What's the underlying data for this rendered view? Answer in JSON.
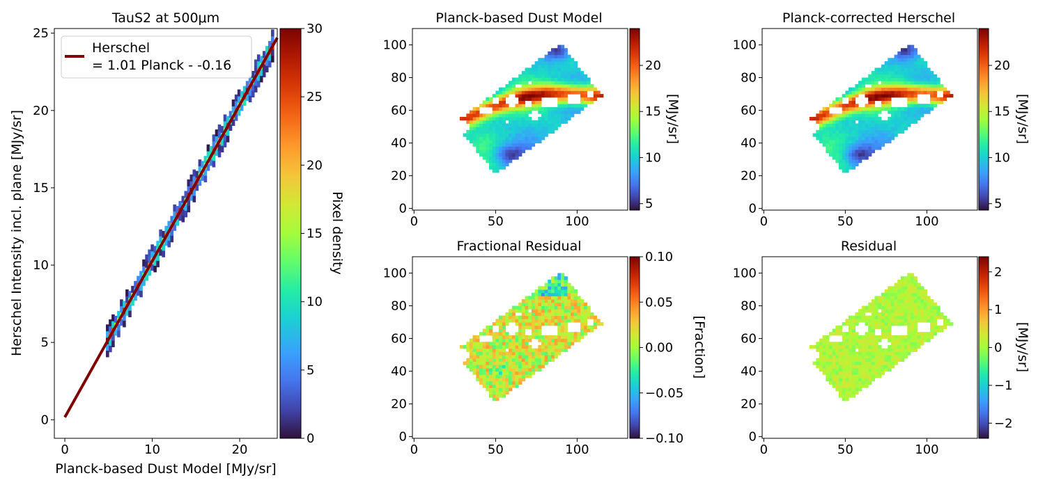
{
  "colormap": "turbo",
  "colors": {
    "fit_line": "#800000",
    "axis": "#000000",
    "background": "#ffffff"
  },
  "chart_data": [
    {
      "id": "scatter",
      "type": "heatmap",
      "title": "TauS2 at 500μm",
      "xlabel": "Planck-based Dust Model [MJy/sr]",
      "ylabel": "Herschel Intensity incl. plane [MJy/sr]",
      "xlim": [
        -1.2,
        24.3
      ],
      "ylim": [
        -1.2,
        25.3
      ],
      "xticks": [
        "0",
        "10",
        "20"
      ],
      "xtick_values": [
        0,
        10,
        20
      ],
      "yticks": [
        "0",
        "5",
        "10",
        "15",
        "20",
        "25"
      ],
      "ytick_values": [
        0,
        5,
        10,
        15,
        20,
        25
      ],
      "legend": {
        "line1": "Herschel",
        "line2": "= 1.01 Planck - -0.16",
        "placement": "upper-left"
      },
      "fit": {
        "slope": 1.01,
        "intercept": 0.16,
        "x_range": [
          0,
          24.3
        ]
      },
      "density_range": [
        4.7,
        23.8
      ],
      "colorbar": {
        "label": "Pixel density",
        "range": [
          0,
          30
        ],
        "ticks": [
          "0",
          "5",
          "10",
          "15",
          "20",
          "25",
          "30"
        ],
        "tick_values": [
          0,
          5,
          10,
          15,
          20,
          25,
          30
        ]
      }
    },
    {
      "id": "model",
      "type": "heatmap",
      "title": "Planck-based Dust Model",
      "map_kind": "model",
      "xlim": [
        -1,
        131
      ],
      "ylim": [
        -1,
        110
      ],
      "xticks": [
        "0",
        "50",
        "100"
      ],
      "xtick_values": [
        0,
        50,
        100
      ],
      "yticks": [
        "0",
        "20",
        "40",
        "60",
        "80",
        "100"
      ],
      "ytick_values": [
        0,
        20,
        40,
        60,
        80,
        100
      ],
      "colorbar": {
        "label": "[MJy/sr]",
        "range": [
          4.3,
          24
        ],
        "ticks": [
          "5",
          "10",
          "15",
          "20"
        ],
        "tick_values": [
          5,
          10,
          15,
          20
        ]
      }
    },
    {
      "id": "corrected",
      "type": "heatmap",
      "title": "Planck-corrected Herschel",
      "map_kind": "model",
      "xlim": [
        -1,
        131
      ],
      "ylim": [
        -1,
        110
      ],
      "xticks": [
        "0",
        "50",
        "100"
      ],
      "xtick_values": [
        0,
        50,
        100
      ],
      "yticks": [
        "0",
        "20",
        "40",
        "60",
        "80",
        "100"
      ],
      "ytick_values": [
        0,
        20,
        40,
        60,
        80,
        100
      ],
      "colorbar": {
        "label": "[MJy/sr]",
        "range": [
          4.3,
          24
        ],
        "ticks": [
          "5",
          "10",
          "15",
          "20"
        ],
        "tick_values": [
          5,
          10,
          15,
          20
        ]
      }
    },
    {
      "id": "fracres",
      "type": "heatmap",
      "title": "Fractional Residual",
      "map_kind": "fractional",
      "xlim": [
        -1,
        131
      ],
      "ylim": [
        -1,
        110
      ],
      "xticks": [
        "0",
        "50",
        "100"
      ],
      "xtick_values": [
        0,
        50,
        100
      ],
      "yticks": [
        "0",
        "20",
        "40",
        "60",
        "80",
        "100"
      ],
      "ytick_values": [
        0,
        20,
        40,
        60,
        80,
        100
      ],
      "colorbar": {
        "label": "[Fraction]",
        "range": [
          -0.1,
          0.1
        ],
        "ticks": [
          "−0.10",
          "−0.05",
          "0.00",
          "0.05",
          "0.10"
        ],
        "tick_values": [
          -0.1,
          -0.05,
          0,
          0.05,
          0.1
        ]
      }
    },
    {
      "id": "res",
      "type": "heatmap",
      "title": "Residual",
      "map_kind": "residual",
      "xlim": [
        -1,
        131
      ],
      "ylim": [
        -1,
        110
      ],
      "xticks": [
        "0",
        "50",
        "100"
      ],
      "xtick_values": [
        0,
        50,
        100
      ],
      "yticks": [
        "0",
        "20",
        "40",
        "60",
        "80",
        "100"
      ],
      "ytick_values": [
        0,
        20,
        40,
        60,
        80,
        100
      ],
      "colorbar": {
        "label": "[MJy/sr]",
        "range": [
          -2.4,
          2.4
        ],
        "ticks": [
          "−2",
          "−1",
          "0",
          "1",
          "2"
        ],
        "tick_values": [
          -2,
          -1,
          0,
          1,
          2
        ]
      }
    }
  ]
}
